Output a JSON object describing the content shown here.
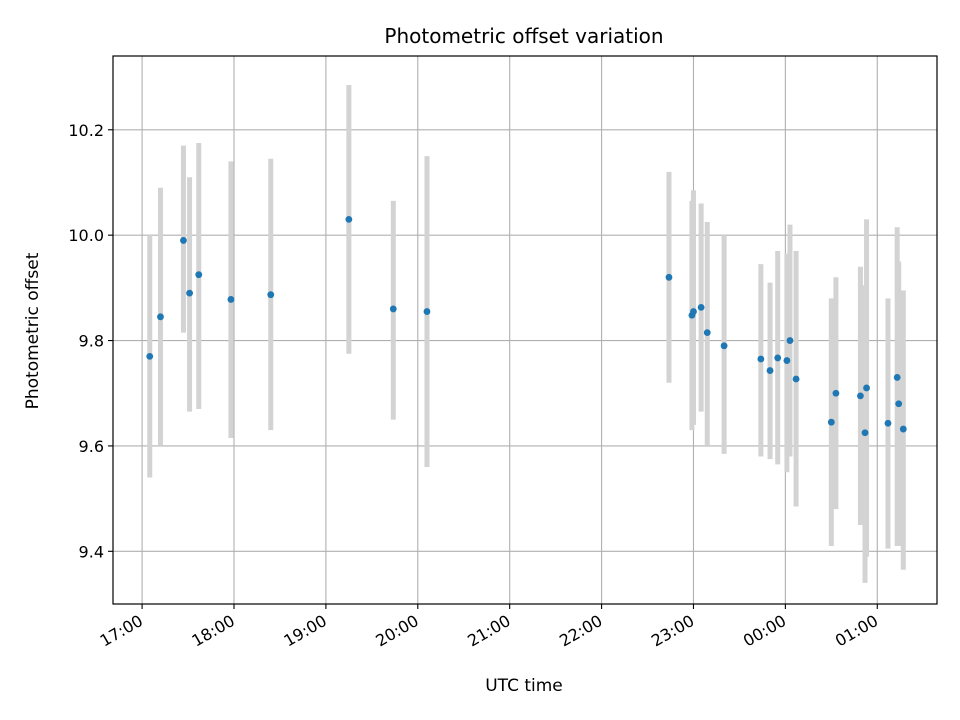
{
  "chart_data": {
    "type": "scatter",
    "title": "Photometric offset variation",
    "xlabel": "UTC time",
    "ylabel": "Photometric offset",
    "grid": true,
    "colors": {
      "points": "#1f77b4",
      "errorbars": "#d3d3d3",
      "grid": "#b0b0b0"
    },
    "xlim": [
      "16:41",
      "01:39"
    ],
    "ylim": [
      9.3,
      10.34
    ],
    "x_ticks": [
      "17:00",
      "18:00",
      "19:00",
      "20:00",
      "21:00",
      "22:00",
      "23:00",
      "00:00",
      "01:00"
    ],
    "y_ticks": [
      "9.4",
      "9.6",
      "9.8",
      "10.0",
      "10.2"
    ],
    "series": [
      {
        "points": [
          {
            "x": "17:05",
            "y": 9.77,
            "ylo": 9.54,
            "yhi": 10.0
          },
          {
            "x": "17:12",
            "y": 9.845,
            "ylo": 9.6,
            "yhi": 10.09
          },
          {
            "x": "17:27",
            "y": 9.99,
            "ylo": 9.815,
            "yhi": 10.17
          },
          {
            "x": "17:31",
            "y": 9.89,
            "ylo": 9.665,
            "yhi": 10.11
          },
          {
            "x": "17:37",
            "y": 9.925,
            "ylo": 9.67,
            "yhi": 10.175
          },
          {
            "x": "17:58",
            "y": 9.878,
            "ylo": 9.615,
            "yhi": 10.14
          },
          {
            "x": "18:24",
            "y": 9.887,
            "ylo": 9.63,
            "yhi": 10.145
          },
          {
            "x": "19:15",
            "y": 10.03,
            "ylo": 9.775,
            "yhi": 10.285
          },
          {
            "x": "19:44",
            "y": 9.86,
            "ylo": 9.65,
            "yhi": 10.065
          },
          {
            "x": "20:06",
            "y": 9.855,
            "ylo": 9.56,
            "yhi": 10.15
          },
          {
            "x": "22:44",
            "y": 9.92,
            "ylo": 9.72,
            "yhi": 10.12
          },
          {
            "x": "22:59",
            "y": 9.848,
            "ylo": 9.63,
            "yhi": 10.065
          },
          {
            "x": "23:00",
            "y": 9.855,
            "ylo": 9.64,
            "yhi": 10.085
          },
          {
            "x": "23:05",
            "y": 9.863,
            "ylo": 9.665,
            "yhi": 10.06
          },
          {
            "x": "23:09",
            "y": 9.815,
            "ylo": 9.6,
            "yhi": 10.025
          },
          {
            "x": "23:20",
            "y": 9.79,
            "ylo": 9.585,
            "yhi": 10.0
          },
          {
            "x": "23:44",
            "y": 9.765,
            "ylo": 9.58,
            "yhi": 9.945
          },
          {
            "x": "23:50",
            "y": 9.743,
            "ylo": 9.575,
            "yhi": 9.91
          },
          {
            "x": "23:55",
            "y": 9.767,
            "ylo": 9.565,
            "yhi": 9.97
          },
          {
            "x": "00:01",
            "y": 9.762,
            "ylo": 9.55,
            "yhi": 9.965
          },
          {
            "x": "00:03",
            "y": 9.8,
            "ylo": 9.58,
            "yhi": 10.02
          },
          {
            "x": "00:07",
            "y": 9.727,
            "ylo": 9.485,
            "yhi": 9.97
          },
          {
            "x": "00:30",
            "y": 9.645,
            "ylo": 9.41,
            "yhi": 9.88
          },
          {
            "x": "00:33",
            "y": 9.7,
            "ylo": 9.48,
            "yhi": 9.92
          },
          {
            "x": "00:49",
            "y": 9.695,
            "ylo": 9.45,
            "yhi": 9.94
          },
          {
            "x": "00:52",
            "y": 9.625,
            "ylo": 9.34,
            "yhi": 9.905
          },
          {
            "x": "00:53",
            "y": 9.71,
            "ylo": 9.39,
            "yhi": 10.03
          },
          {
            "x": "01:07",
            "y": 9.643,
            "ylo": 9.405,
            "yhi": 9.88
          },
          {
            "x": "01:13",
            "y": 9.73,
            "ylo": 9.41,
            "yhi": 10.015
          },
          {
            "x": "01:14",
            "y": 9.68,
            "ylo": 9.41,
            "yhi": 9.95
          },
          {
            "x": "01:17",
            "y": 9.632,
            "ylo": 9.365,
            "yhi": 9.895
          }
        ]
      }
    ]
  }
}
